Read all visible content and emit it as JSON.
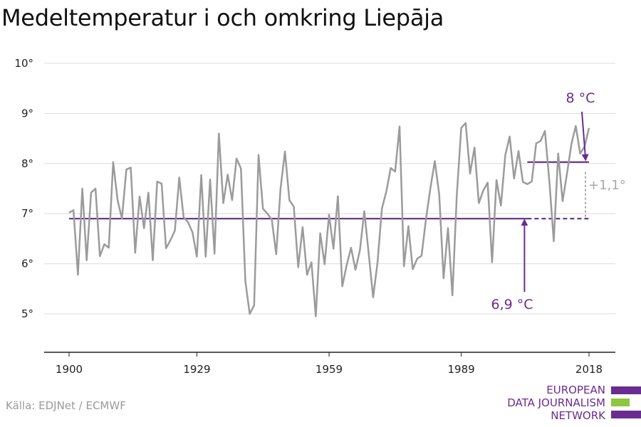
{
  "title": "Medeltemperatur i och omkring Liepāja",
  "source": "Källa: EDJNet / ECMWF",
  "logo": {
    "lines": [
      "EUROPEAN",
      "DATA JOURNALISM",
      "NETWORK"
    ],
    "colors": {
      "purple": "#6a2c91",
      "green": "#8dc63f"
    }
  },
  "colors": {
    "series": "#9b9b9b",
    "avg": "#5b1f7c",
    "annotation": "#6a2c91",
    "diff": "#a9a9a9",
    "grid": "#dcdcdc",
    "axis": "#222222"
  },
  "chart_data": {
    "type": "line",
    "title": "Medeltemperatur i och omkring Liepāja",
    "xlabel": "",
    "ylabel": "",
    "xlim": [
      1900,
      2018
    ],
    "ylim": [
      4.2,
      10.3
    ],
    "x_ticks": [
      1900,
      1929,
      1959,
      1989,
      2018
    ],
    "y_ticks": [
      {
        "value": 5,
        "label": "5°"
      },
      {
        "value": 6,
        "label": "6°"
      },
      {
        "value": 7,
        "label": "7°"
      },
      {
        "value": 8,
        "label": "8°"
      },
      {
        "value": 9,
        "label": "9°"
      },
      {
        "value": 10,
        "label": "10°"
      }
    ],
    "grid": true,
    "series": [
      {
        "x": [
          1900,
          1901,
          1902,
          1903,
          1904,
          1905,
          1906,
          1907,
          1908,
          1909,
          1910,
          1911,
          1912,
          1913,
          1914,
          1915,
          1916,
          1917,
          1918,
          1919,
          1920,
          1921,
          1922,
          1923,
          1924,
          1925,
          1926,
          1927,
          1928,
          1929,
          1930,
          1931,
          1932,
          1933,
          1934,
          1935,
          1936,
          1937,
          1938,
          1939,
          1940,
          1941,
          1942,
          1943,
          1944,
          1945,
          1946,
          1947,
          1948,
          1949,
          1950,
          1951,
          1952,
          1953,
          1954,
          1955,
          1956,
          1957,
          1958,
          1959,
          1960,
          1961,
          1962,
          1963,
          1964,
          1965,
          1966,
          1967,
          1968,
          1969,
          1970,
          1971,
          1972,
          1973,
          1974,
          1975,
          1976,
          1977,
          1978,
          1979,
          1980,
          1981,
          1982,
          1983,
          1984,
          1985,
          1986,
          1987,
          1988,
          1989,
          1990,
          1991,
          1992,
          1993,
          1994,
          1995,
          1996,
          1997,
          1998,
          1999,
          2000,
          2001,
          2002,
          2003,
          2004,
          2005,
          2006,
          2007,
          2008,
          2009,
          2010,
          2011,
          2012,
          2013,
          2014,
          2015,
          2016,
          2017,
          2018
        ],
        "values": [
          7.02,
          7.07,
          5.78,
          7.5,
          6.07,
          7.42,
          7.5,
          6.15,
          6.39,
          6.32,
          8.03,
          7.27,
          6.9,
          7.88,
          7.92,
          6.22,
          7.34,
          6.71,
          7.42,
          6.07,
          7.64,
          7.6,
          6.31,
          6.47,
          6.66,
          7.72,
          6.93,
          6.83,
          6.63,
          6.14,
          7.77,
          6.14,
          7.68,
          6.2,
          8.6,
          7.21,
          7.78,
          7.27,
          8.1,
          7.9,
          5.65,
          5.0,
          5.17,
          8.17,
          7.1,
          7.0,
          6.88,
          6.19,
          7.5,
          8.24,
          7.27,
          7.14,
          5.93,
          6.73,
          5.78,
          6.03,
          4.95,
          6.61,
          5.99,
          6.98,
          6.3,
          7.35,
          5.55,
          5.97,
          6.32,
          5.88,
          6.27,
          7.05,
          6.2,
          5.33,
          6.03,
          7.1,
          7.44,
          7.91,
          7.84,
          8.74,
          5.95,
          6.75,
          5.89,
          6.1,
          6.16,
          6.89,
          7.51,
          8.05,
          7.38,
          5.71,
          6.71,
          5.37,
          7.38,
          8.71,
          8.81,
          7.8,
          8.32,
          7.21,
          7.46,
          7.62,
          6.03,
          7.67,
          7.16,
          8.17,
          8.54,
          7.7,
          8.25,
          7.63,
          7.59,
          7.64,
          8.4,
          8.45,
          8.65,
          7.65,
          6.45,
          8.2,
          7.25,
          7.8,
          8.39,
          8.75,
          8.2,
          8.34,
          8.71
        ]
      }
    ],
    "reference_lines": [
      {
        "value": 6.9,
        "from": 1900,
        "to": 2018,
        "dashed_from": 2004
      },
      {
        "value": 8.03,
        "from": 2004,
        "to": 2018
      }
    ],
    "annotations": [
      {
        "text": "6,9 °C",
        "x": 2004,
        "y": 6.9
      },
      {
        "text": "8 °C",
        "x": 2017,
        "y": 8.03
      },
      {
        "text": "+1,1°",
        "x": 2018,
        "y": 7.45
      }
    ]
  }
}
